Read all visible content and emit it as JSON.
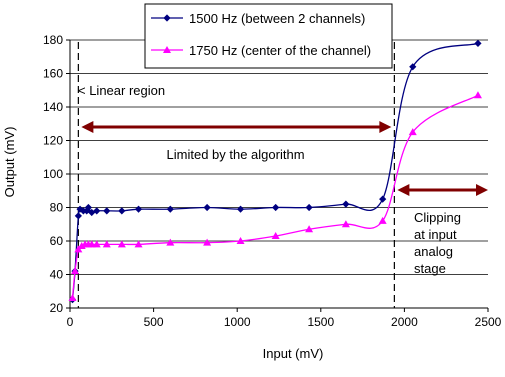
{
  "chart_data": {
    "type": "line",
    "title": "",
    "xlabel": "Input (mV)",
    "ylabel": "Output (mV)",
    "xlim": [
      0,
      2500
    ],
    "ylim": [
      20,
      180
    ],
    "xticks": [
      0,
      500,
      1000,
      1500,
      2000,
      2500
    ],
    "yticks": [
      20,
      40,
      60,
      80,
      100,
      120,
      140,
      160,
      180
    ],
    "grid": "horizontal",
    "legend_position": "top",
    "series": [
      {
        "name": "1500 Hz (between 2 channels)",
        "color": "#000080",
        "marker": "diamond",
        "points": [
          [
            15,
            25
          ],
          [
            30,
            42
          ],
          [
            50,
            75
          ],
          [
            60,
            79
          ],
          [
            80,
            78
          ],
          [
            100,
            78
          ],
          [
            110,
            80
          ],
          [
            130,
            77
          ],
          [
            160,
            78
          ],
          [
            220,
            78
          ],
          [
            310,
            78
          ],
          [
            410,
            79
          ],
          [
            600,
            79
          ],
          [
            820,
            80
          ],
          [
            1020,
            79
          ],
          [
            1230,
            80
          ],
          [
            1430,
            80
          ],
          [
            1650,
            82
          ],
          [
            1870,
            85
          ],
          [
            2050,
            164
          ],
          [
            2440,
            178
          ]
        ]
      },
      {
        "name": "1750 Hz (center of the channel)",
        "color": "#ff00ff",
        "marker": "triangle",
        "points": [
          [
            15,
            26
          ],
          [
            30,
            42
          ],
          [
            50,
            55
          ],
          [
            70,
            57
          ],
          [
            90,
            58
          ],
          [
            110,
            58
          ],
          [
            130,
            58
          ],
          [
            160,
            58
          ],
          [
            220,
            58
          ],
          [
            310,
            58
          ],
          [
            410,
            58
          ],
          [
            600,
            59
          ],
          [
            820,
            59
          ],
          [
            1020,
            60
          ],
          [
            1230,
            63
          ],
          [
            1430,
            67
          ],
          [
            1650,
            70
          ],
          [
            1870,
            72
          ],
          [
            2050,
            125
          ],
          [
            2440,
            147
          ]
        ]
      }
    ],
    "annotations": {
      "linear_region": "< Linear region",
      "limited": "Limited by the algorithm",
      "clipping": [
        "Clipping",
        "at input",
        "analog",
        "stage"
      ]
    },
    "reference_lines_x": [
      50,
      1940
    ],
    "arrow_color": "#800000"
  }
}
